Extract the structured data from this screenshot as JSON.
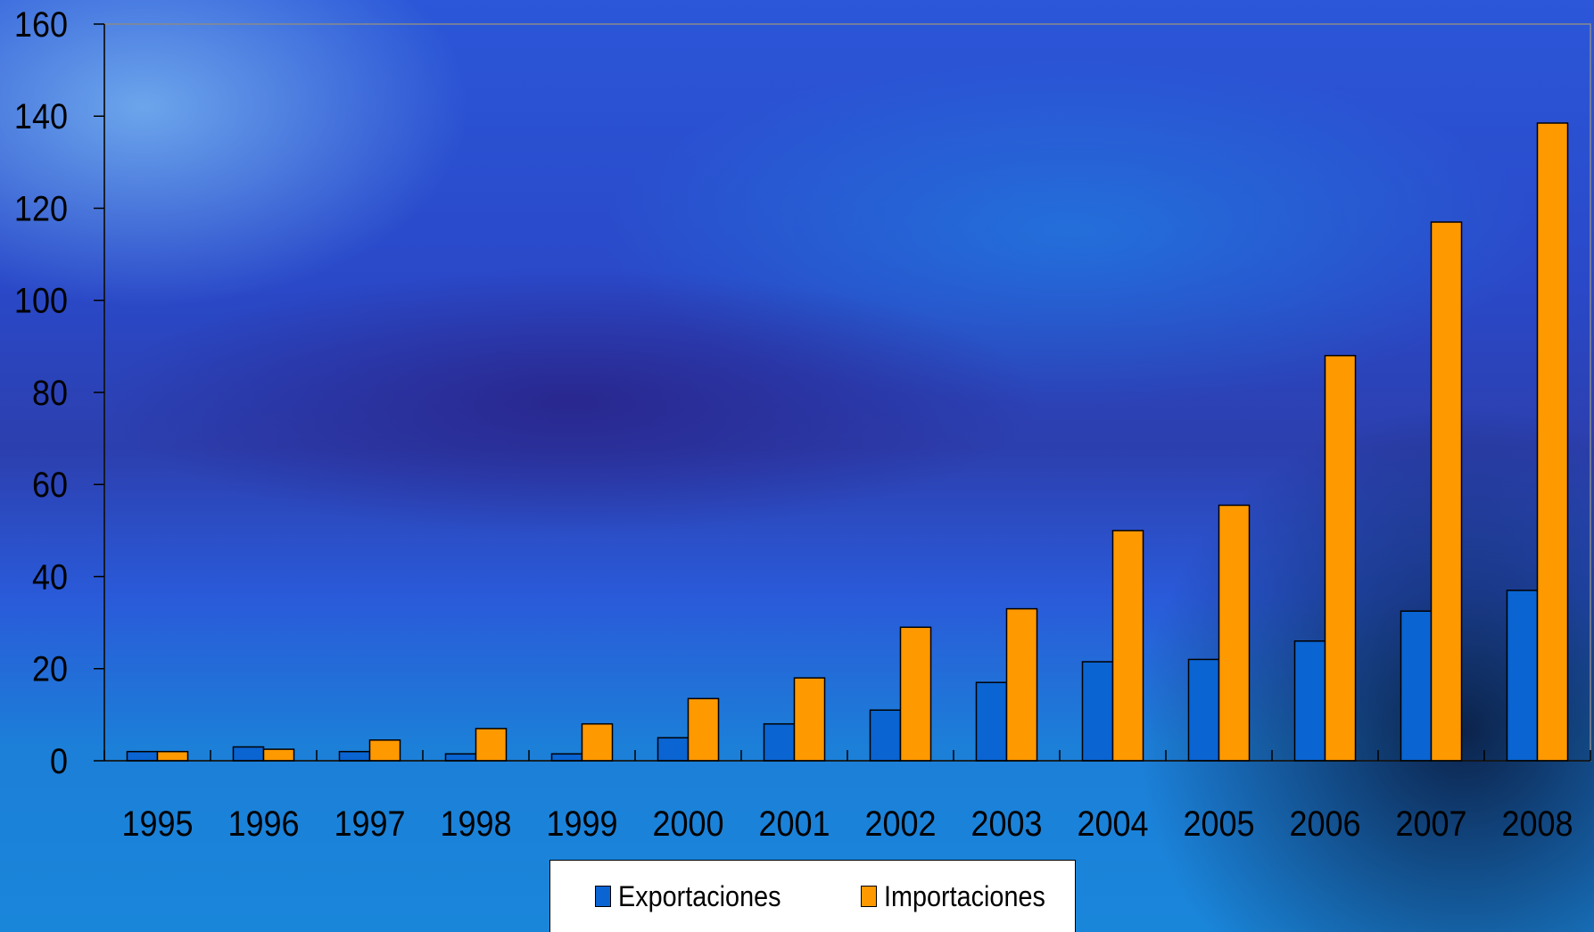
{
  "colors": {
    "exportaciones": "#0a64d2",
    "importaciones": "#ff9900",
    "axis": "#000000",
    "frame": "#8a8a8a"
  },
  "chart_data": {
    "type": "bar",
    "categories": [
      "1995",
      "1996",
      "1997",
      "1998",
      "1999",
      "2000",
      "2001",
      "2002",
      "2003",
      "2004",
      "2005",
      "2006",
      "2007",
      "2008"
    ],
    "series": [
      {
        "name": "Exportaciones",
        "values": [
          2,
          3,
          2,
          1.5,
          1.5,
          5,
          8,
          11,
          17,
          21.5,
          22,
          26,
          32.5,
          37
        ]
      },
      {
        "name": "Importaciones",
        "values": [
          2,
          2.5,
          4.5,
          7,
          8,
          13.5,
          18,
          29,
          33,
          50,
          55.5,
          88,
          117,
          138.5
        ]
      }
    ],
    "yticks": [
      "0",
      "20",
      "40",
      "60",
      "80",
      "100",
      "120",
      "140",
      "160"
    ],
    "ylim": [
      0,
      160
    ],
    "grid": false,
    "legend": "bottom",
    "title": "",
    "xlabel": "",
    "ylabel": ""
  },
  "legend": {
    "items": [
      {
        "label": "Exportaciones"
      },
      {
        "label": "Importaciones"
      }
    ]
  }
}
